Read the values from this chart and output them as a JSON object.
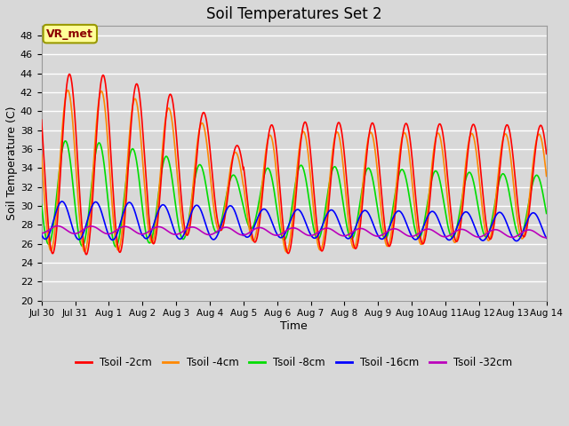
{
  "title": "Soil Temperatures Set 2",
  "xlabel": "Time",
  "ylabel": "Soil Temperature (C)",
  "ylim": [
    20,
    49
  ],
  "yticks": [
    20,
    22,
    24,
    26,
    28,
    30,
    32,
    34,
    36,
    38,
    40,
    42,
    44,
    46,
    48
  ],
  "annotation_text": "VR_met",
  "annotation_bg": "#ffff99",
  "annotation_border": "#999900",
  "background_color": "#d8d8d8",
  "plot_bg": "#d8d8d8",
  "grid_color": "#ffffff",
  "series_colors": [
    "#ff0000",
    "#ff8800",
    "#00dd00",
    "#0000ff",
    "#bb00bb"
  ],
  "series_labels": [
    "Tsoil -2cm",
    "Tsoil -4cm",
    "Tsoil -8cm",
    "Tsoil -16cm",
    "Tsoil -32cm"
  ],
  "x_tick_labels": [
    "Jul 30",
    "Jul 31",
    "Aug 1",
    "Aug 2",
    "Aug 3",
    "Aug 4",
    "Aug 5",
    "Aug 6",
    "Aug 7",
    "Aug 8",
    "Aug 9",
    "Aug 10",
    "Aug 11",
    "Aug 12",
    "Aug 13",
    "Aug 14"
  ],
  "linewidth": 1.2,
  "figwidth": 6.4,
  "figheight": 4.8,
  "dpi": 100
}
